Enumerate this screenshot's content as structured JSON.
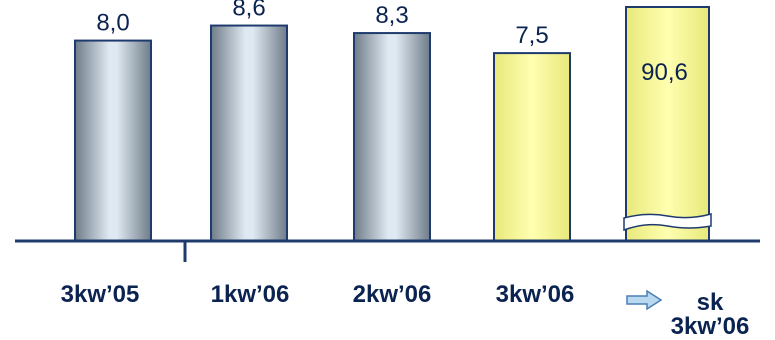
{
  "chart_data": {
    "type": "bar",
    "categories": [
      "3kw’05",
      "1kw’06",
      "2kw’06",
      "3kw’06"
    ],
    "values": [
      8.0,
      8.6,
      8.3,
      7.5
    ],
    "value_labels": [
      "8,0",
      "8,6",
      "8,3",
      "7,5"
    ],
    "highlight_index": 3,
    "extra_bar": {
      "label_line1": "sk",
      "label_line2": "3kw’06",
      "value": 90.6,
      "value_label": "90,6",
      "axis_break": true,
      "marker": "right-arrow-icon"
    },
    "ylim": [
      0,
      9.5
    ],
    "grid": false,
    "legend": "none",
    "title": "",
    "xlabel": "",
    "ylabel": ""
  },
  "colors": {
    "gray_bar_dark": "#7d8a97",
    "gray_bar_light": "#dde8f0",
    "yellow_bar": "#ffff99",
    "yellow_bar_shade": "#e6e67a",
    "axis": "#1f3b6e",
    "label_text": "#0b2350",
    "arrow_fill": "#b8d9f0",
    "arrow_stroke": "#4a7fb5"
  }
}
